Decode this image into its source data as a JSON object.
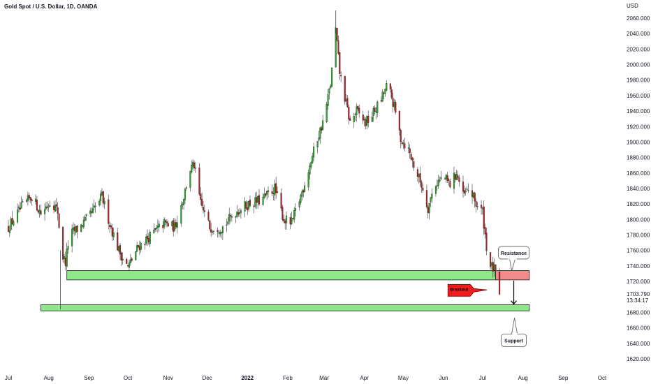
{
  "header": {
    "symbol_title": "Gold Spot / U.S. Dollar, 1D, OANDA"
  },
  "chart_data": {
    "type": "candlestick",
    "title": "Gold Spot / U.S. Dollar, 1D, OANDA",
    "currency_label": "USD",
    "ylim": [
      1610,
      2080
    ],
    "y_ticks": [
      "2060.000",
      "2040.000",
      "2020.000",
      "2000.000",
      "1980.000",
      "1960.000",
      "1940.000",
      "1920.000",
      "1900.000",
      "1880.000",
      "1860.000",
      "1840.000",
      "1820.000",
      "1800.000",
      "1780.000",
      "1760.000",
      "1740.000",
      "1720.000",
      "1680.000",
      "1660.000",
      "1640.000",
      "1620.000"
    ],
    "y_tick_values": [
      2060,
      2040,
      2020,
      2000,
      1980,
      1960,
      1940,
      1920,
      1900,
      1880,
      1860,
      1840,
      1820,
      1800,
      1780,
      1760,
      1740,
      1720,
      1680,
      1660,
      1640,
      1620
    ],
    "x_ticks": [
      {
        "label": "Jul",
        "day": 0,
        "bold": false
      },
      {
        "label": "Aug",
        "day": 31,
        "bold": false
      },
      {
        "label": "Sep",
        "day": 62,
        "bold": false
      },
      {
        "label": "Oct",
        "day": 92,
        "bold": false
      },
      {
        "label": "Nov",
        "day": 123,
        "bold": false
      },
      {
        "label": "Dec",
        "day": 153,
        "bold": false
      },
      {
        "label": "2022",
        "day": 184,
        "bold": true
      },
      {
        "label": "Feb",
        "day": 215,
        "bold": false
      },
      {
        "label": "Mar",
        "day": 243,
        "bold": false
      },
      {
        "label": "Apr",
        "day": 274,
        "bold": false
      },
      {
        "label": "May",
        "day": 304,
        "bold": false
      },
      {
        "label": "Jun",
        "day": 335,
        "bold": false
      },
      {
        "label": "Jul",
        "day": 365,
        "bold": false
      },
      {
        "label": "Aug",
        "day": 396,
        "bold": false
      },
      {
        "label": "Sep",
        "day": 427,
        "bold": false
      },
      {
        "label": "Oct",
        "day": 457,
        "bold": false
      }
    ],
    "anchors": [
      {
        "day": 0,
        "price": 1790
      },
      {
        "day": 10,
        "price": 1815
      },
      {
        "day": 18,
        "price": 1830
      },
      {
        "day": 25,
        "price": 1808
      },
      {
        "day": 33,
        "price": 1825
      },
      {
        "day": 38,
        "price": 1810
      },
      {
        "day": 41,
        "price": 1755
      },
      {
        "day": 44,
        "price": 1745
      },
      {
        "day": 47,
        "price": 1780
      },
      {
        "day": 55,
        "price": 1790
      },
      {
        "day": 65,
        "price": 1810
      },
      {
        "day": 72,
        "price": 1830
      },
      {
        "day": 78,
        "price": 1795
      },
      {
        "day": 85,
        "price": 1760
      },
      {
        "day": 92,
        "price": 1738
      },
      {
        "day": 100,
        "price": 1765
      },
      {
        "day": 110,
        "price": 1780
      },
      {
        "day": 120,
        "price": 1795
      },
      {
        "day": 128,
        "price": 1790
      },
      {
        "day": 135,
        "price": 1830
      },
      {
        "day": 140,
        "price": 1865
      },
      {
        "day": 143,
        "price": 1870
      },
      {
        "day": 148,
        "price": 1820
      },
      {
        "day": 155,
        "price": 1790
      },
      {
        "day": 165,
        "price": 1790
      },
      {
        "day": 175,
        "price": 1810
      },
      {
        "day": 185,
        "price": 1820
      },
      {
        "day": 195,
        "price": 1825
      },
      {
        "day": 205,
        "price": 1840
      },
      {
        "day": 212,
        "price": 1800
      },
      {
        "day": 218,
        "price": 1795
      },
      {
        "day": 225,
        "price": 1830
      },
      {
        "day": 232,
        "price": 1870
      },
      {
        "day": 238,
        "price": 1905
      },
      {
        "day": 243,
        "price": 1930
      },
      {
        "day": 248,
        "price": 1975
      },
      {
        "day": 252,
        "price": 2045
      },
      {
        "day": 255,
        "price": 1990
      },
      {
        "day": 258,
        "price": 1965
      },
      {
        "day": 263,
        "price": 1925
      },
      {
        "day": 268,
        "price": 1940
      },
      {
        "day": 275,
        "price": 1925
      },
      {
        "day": 280,
        "price": 1935
      },
      {
        "day": 287,
        "price": 1955
      },
      {
        "day": 292,
        "price": 1975
      },
      {
        "day": 297,
        "price": 1945
      },
      {
        "day": 302,
        "price": 1905
      },
      {
        "day": 308,
        "price": 1890
      },
      {
        "day": 313,
        "price": 1865
      },
      {
        "day": 318,
        "price": 1845
      },
      {
        "day": 323,
        "price": 1815
      },
      {
        "day": 328,
        "price": 1845
      },
      {
        "day": 335,
        "price": 1855
      },
      {
        "day": 340,
        "price": 1845
      },
      {
        "day": 345,
        "price": 1860
      },
      {
        "day": 350,
        "price": 1830
      },
      {
        "day": 355,
        "price": 1840
      },
      {
        "day": 360,
        "price": 1820
      },
      {
        "day": 365,
        "price": 1810
      },
      {
        "day": 368,
        "price": 1765
      },
      {
        "day": 371,
        "price": 1740
      },
      {
        "day": 374,
        "price": 1735
      },
      {
        "day": 377,
        "price": 1712
      },
      {
        "day": 378,
        "price": 1704
      }
    ],
    "last_price": "1703.790",
    "countdown": "13:34:17",
    "zones": [
      {
        "name": "resistance-zone-green",
        "from_day": 45,
        "to_day": 375,
        "low": 1722,
        "high": 1734,
        "color": "#8ee88a"
      },
      {
        "name": "resistance-zone-red",
        "from_day": 375,
        "to_day": 401,
        "low": 1722,
        "high": 1734,
        "color": "#f28b8b"
      },
      {
        "name": "support-zone",
        "from_day": 25,
        "to_day": 401,
        "low": 1682,
        "high": 1690,
        "color": "#8ee88a"
      }
    ],
    "annotations": [
      {
        "text": "Resistance"
      },
      {
        "text": "Breakout"
      },
      {
        "text": "Support"
      }
    ],
    "colors": {
      "bull": "#26a826",
      "bear": "#b22222",
      "last_price_box": "#ffffff"
    }
  }
}
